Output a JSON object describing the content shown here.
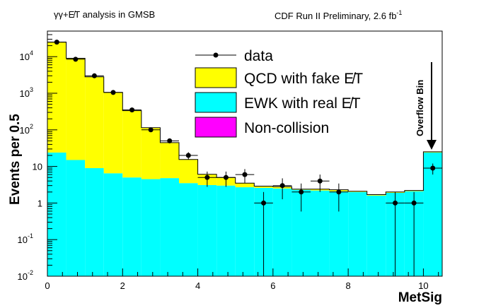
{
  "chart_data": {
    "type": "histogram",
    "header_left": "γγ+E̸T analysis in GMSB",
    "header_right": "CDF Run II Preliminary, 2.6 fb",
    "header_right_sup": "-1",
    "xlabel": "MetSig",
    "ylabel": "Events per 0.5",
    "xlim": [
      0,
      10.5
    ],
    "ylim": [
      0.01,
      50000
    ],
    "yscale": "log",
    "x_ticks": [
      0,
      2,
      4,
      6,
      8,
      10
    ],
    "x_tick_labels": [
      "0",
      "2",
      "4",
      "6",
      "8",
      "10"
    ],
    "y_ticks": [
      0.01,
      0.1,
      1,
      10,
      100,
      1000,
      10000
    ],
    "y_tick_labels": [
      {
        "base": "10",
        "exp": "-2"
      },
      {
        "base": "10",
        "exp": "-1"
      },
      {
        "base": "1",
        "exp": ""
      },
      {
        "base": "10",
        "exp": ""
      },
      {
        "base": "10",
        "exp": "2"
      },
      {
        "base": "10",
        "exp": "3"
      },
      {
        "base": "10",
        "exp": "4"
      }
    ],
    "bin_edges": [
      0,
      0.5,
      1,
      1.5,
      2,
      2.5,
      3,
      3.5,
      4,
      4.5,
      5,
      5.5,
      6,
      6.5,
      7,
      7.5,
      8,
      8.5,
      9,
      9.5,
      10,
      10.5
    ],
    "series": [
      {
        "name": "EWK with real E̸T",
        "color": "#00ffff",
        "values": [
          24,
          15,
          9,
          6.5,
          5,
          4.5,
          4.8,
          3.5,
          3.1,
          3.0,
          2.7,
          2.6,
          2.5,
          2.3,
          2.2,
          2.1,
          2.0,
          1.6,
          1.9,
          2.1,
          24
        ]
      },
      {
        "name": "QCD with fake E̸T",
        "color": "#ffff00",
        "values": [
          25000,
          9000,
          2800,
          1050,
          330,
          110,
          40,
          12,
          3.0,
          2.0,
          0.8,
          0.3,
          0.3,
          0.1,
          0.2,
          0.2,
          0.1,
          0.1,
          0.1,
          0.1,
          1
        ]
      },
      {
        "name": "Non-collision",
        "color": "#ff00ff",
        "values": [
          0,
          0,
          0,
          0,
          0,
          0,
          0,
          0,
          0,
          0,
          0,
          0,
          0,
          0,
          0,
          0,
          0,
          0,
          0,
          0,
          0.09
        ]
      }
    ],
    "data": {
      "name": "data",
      "x": [
        0.25,
        0.75,
        1.25,
        1.75,
        2.25,
        2.75,
        3.25,
        3.75,
        4.25,
        4.75,
        5.25,
        5.75,
        6.25,
        6.75,
        7.25,
        7.75,
        9.25,
        9.75,
        10.25
      ],
      "y": [
        25000,
        8500,
        3000,
        1050,
        350,
        100,
        50,
        20,
        5,
        5,
        6,
        1,
        3,
        2,
        4,
        2,
        1,
        1,
        9
      ],
      "x_err": 0.25
    },
    "legend": [
      "data",
      "QCD with fake E̸T",
      "EWK with real E̸T",
      "Non-collision"
    ],
    "legend_position": "top-center",
    "annotation": "Overflow Bin"
  }
}
